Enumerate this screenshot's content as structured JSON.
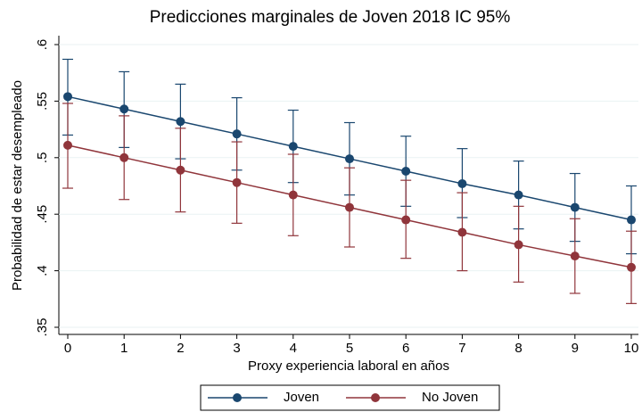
{
  "chart_data": {
    "type": "line",
    "title": "Predicciones marginales de Joven 2018 IC 95%",
    "x_label": "Proxy experiencia laboral en años",
    "y_label": "Probabilidad de estar desempleado",
    "x": [
      0,
      1,
      2,
      3,
      4,
      5,
      6,
      7,
      8,
      9,
      10
    ],
    "xlim": [
      0,
      10
    ],
    "xticks": [
      0,
      1,
      2,
      3,
      4,
      5,
      6,
      7,
      8,
      9,
      10
    ],
    "ylim": [
      0.35,
      0.6
    ],
    "yticks": [
      {
        "value": 0.35,
        "label": ".35"
      },
      {
        "value": 0.4,
        "label": ".4"
      },
      {
        "value": 0.45,
        "label": ".45"
      },
      {
        "value": 0.5,
        "label": ".5"
      },
      {
        "value": 0.55,
        "label": ".55"
      },
      {
        "value": 0.6,
        "label": ".6"
      }
    ],
    "grid": true,
    "legend": "bottom",
    "series": [
      {
        "name": "Joven",
        "color": "#1a476f",
        "values": [
          0.554,
          0.543,
          0.532,
          0.521,
          0.51,
          0.499,
          0.488,
          0.477,
          0.467,
          0.456,
          0.445
        ],
        "lower": [
          0.52,
          0.509,
          0.499,
          0.489,
          0.478,
          0.467,
          0.457,
          0.447,
          0.437,
          0.426,
          0.415
        ],
        "upper": [
          0.587,
          0.576,
          0.565,
          0.553,
          0.542,
          0.531,
          0.519,
          0.508,
          0.497,
          0.486,
          0.475
        ]
      },
      {
        "name": "No Joven",
        "color": "#90353b",
        "values": [
          0.511,
          0.5,
          0.489,
          0.478,
          0.467,
          0.456,
          0.445,
          0.434,
          0.423,
          0.413,
          0.403
        ],
        "lower": [
          0.473,
          0.463,
          0.452,
          0.442,
          0.431,
          0.421,
          0.411,
          0.4,
          0.39,
          0.38,
          0.371
        ],
        "upper": [
          0.548,
          0.537,
          0.526,
          0.514,
          0.503,
          0.491,
          0.48,
          0.469,
          0.457,
          0.446,
          0.435
        ]
      }
    ]
  }
}
